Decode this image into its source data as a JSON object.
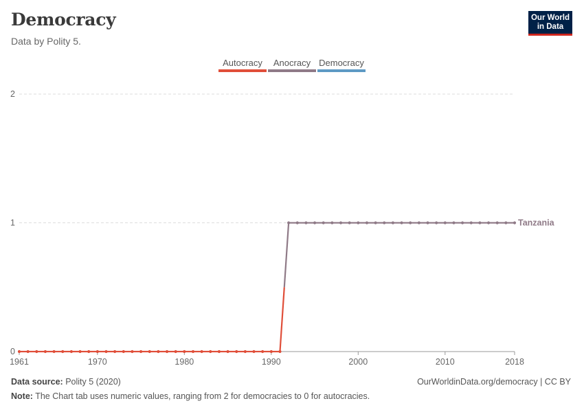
{
  "header": {
    "title": "Democracy",
    "subtitle": "Data by Polity 5."
  },
  "logo": {
    "line1": "Our World",
    "line2": "in Data",
    "bg": "#002147",
    "accent": "#ce261e"
  },
  "footer": {
    "source_label": "Data source:",
    "source_value": "Polity 5 (2020)",
    "url": "OurWorldinData.org/democracy | CC BY",
    "note_label": "Note:",
    "note_value": "The Chart tab uses numeric values, ranging from 2 for democracies to 0 for autocracies."
  },
  "chart_data": {
    "type": "line",
    "title": "Democracy",
    "subtitle": "Data by Polity 5.",
    "xlabel": "",
    "ylabel": "",
    "xlim": [
      1961,
      2018
    ],
    "ylim": [
      0,
      2
    ],
    "x_ticks": [
      1961,
      1970,
      1980,
      1990,
      2000,
      2010,
      2018
    ],
    "y_ticks": [
      0,
      1,
      2
    ],
    "grid": "horizontal dashed",
    "legend_placement": "top-center",
    "legend": [
      {
        "label": "Autocracy",
        "color": "#e04e39"
      },
      {
        "label": "Anocracy",
        "color": "#8f7a87"
      },
      {
        "label": "Democracy",
        "color": "#5d9ac4"
      }
    ],
    "series": [
      {
        "name": "Tanzania",
        "color_by_value": {
          "0": "#e04e39",
          "1": "#8f7a87",
          "2": "#5d9ac4"
        },
        "x": [
          1961,
          1962,
          1963,
          1964,
          1965,
          1966,
          1967,
          1968,
          1969,
          1970,
          1971,
          1972,
          1973,
          1974,
          1975,
          1976,
          1977,
          1978,
          1979,
          1980,
          1981,
          1982,
          1983,
          1984,
          1985,
          1986,
          1987,
          1988,
          1989,
          1990,
          1991,
          1992,
          1993,
          1994,
          1995,
          1996,
          1997,
          1998,
          1999,
          2000,
          2001,
          2002,
          2003,
          2004,
          2005,
          2006,
          2007,
          2008,
          2009,
          2010,
          2011,
          2012,
          2013,
          2014,
          2015,
          2016,
          2017,
          2018
        ],
        "values": [
          0,
          0,
          0,
          0,
          0,
          0,
          0,
          0,
          0,
          0,
          0,
          0,
          0,
          0,
          0,
          0,
          0,
          0,
          0,
          0,
          0,
          0,
          0,
          0,
          0,
          0,
          0,
          0,
          0,
          0,
          0,
          1,
          1,
          1,
          1,
          1,
          1,
          1,
          1,
          1,
          1,
          1,
          1,
          1,
          1,
          1,
          1,
          1,
          1,
          1,
          1,
          1,
          1,
          1,
          1,
          1,
          1,
          1
        ]
      }
    ]
  }
}
